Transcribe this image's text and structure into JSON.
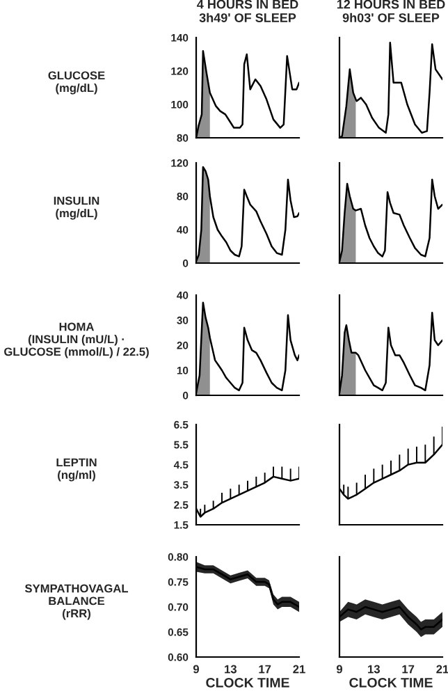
{
  "chart_data": [
    {
      "type": "line",
      "title": "4 HOURS IN BED\n3h49' OF SLEEP",
      "ylabel": "GLUCOSE\n(mg/dL)",
      "xlim": [
        9,
        21
      ],
      "xticks": [
        9,
        13,
        17,
        21
      ],
      "ylim": [
        80,
        140
      ],
      "yticks": [
        80,
        100,
        120,
        140
      ],
      "tick_labels": "y",
      "series": [
        {
          "type": "area",
          "color": "#909090",
          "x": [
            9.0,
            9.27,
            9.65,
            9.8,
            10.2,
            10.6
          ],
          "values": [
            80,
            87,
            94,
            132,
            119,
            107
          ]
        },
        {
          "color": "#000000",
          "x": [
            9.0,
            9.27,
            9.65,
            9.8,
            10.2,
            10.6,
            11.3,
            11.8,
            12.4,
            12.9,
            13.4,
            14.1,
            14.4,
            14.6,
            14.9,
            15.3,
            15.9,
            16.5,
            17.2,
            18.0,
            18.8,
            19.2,
            19.6,
            20.2,
            20.7,
            21.0
          ],
          "values": [
            80,
            87,
            94,
            132,
            119,
            107,
            99,
            96,
            94,
            90,
            86,
            86,
            88,
            124,
            130,
            109,
            115,
            111,
            103,
            91,
            86,
            88,
            129,
            109,
            109,
            113
          ]
        }
      ]
    },
    {
      "type": "line",
      "title": "12 HOURS IN BED\n9h03' OF SLEEP",
      "xlim": [
        9,
        21
      ],
      "xticks": [
        9,
        13,
        17,
        21
      ],
      "ylim": [
        80,
        140
      ],
      "yticks": [
        80,
        100,
        120,
        140
      ],
      "tick_labels": false,
      "series": [
        {
          "type": "area",
          "color": "#909090",
          "x": [
            9.0,
            9.3,
            9.8,
            10.2,
            10.6,
            10.9
          ],
          "values": [
            80,
            81,
            99,
            121,
            107,
            103
          ]
        },
        {
          "color": "#000000",
          "x": [
            9.0,
            9.3,
            9.8,
            10.2,
            10.6,
            10.9,
            11.0,
            11.5,
            12.1,
            12.8,
            13.6,
            14.4,
            14.7,
            14.9,
            15.3,
            16.2,
            16.9,
            17.8,
            18.6,
            19.2,
            19.5,
            19.8,
            20.2,
            21.0
          ],
          "values": [
            80,
            81,
            99,
            121,
            107,
            103,
            102,
            104,
            100,
            92,
            86,
            83,
            94,
            137,
            113,
            113,
            100,
            88,
            83,
            84,
            107,
            136,
            121,
            115
          ]
        }
      ]
    },
    {
      "type": "line",
      "ylabel": "INSULIN\n(mg/dL)",
      "xlim": [
        9,
        21
      ],
      "xticks": [
        9,
        13,
        17,
        21
      ],
      "ylim": [
        0,
        120
      ],
      "yticks": [
        0,
        40,
        80,
        120
      ],
      "tick_labels": "y",
      "series": [
        {
          "type": "area",
          "color": "#909090",
          "x": [
            9.0,
            9.3,
            9.6,
            9.8,
            10.1,
            10.4,
            10.6
          ],
          "values": [
            2,
            10,
            40,
            115,
            110,
            100,
            80
          ]
        },
        {
          "color": "#000000",
          "x": [
            9.0,
            9.3,
            9.6,
            9.8,
            10.1,
            10.4,
            10.6,
            11.0,
            11.5,
            12.0,
            12.5,
            13.0,
            13.5,
            14.0,
            14.3,
            14.6,
            14.9,
            15.3,
            16.0,
            16.5,
            17.2,
            17.8,
            18.4,
            19.0,
            19.4,
            19.7,
            20.0,
            20.4,
            20.8,
            21.0
          ],
          "values": [
            2,
            10,
            40,
            115,
            110,
            100,
            80,
            55,
            40,
            32,
            25,
            15,
            10,
            8,
            20,
            88,
            80,
            70,
            62,
            50,
            35,
            20,
            12,
            10,
            40,
            100,
            75,
            55,
            56,
            60
          ]
        }
      ]
    },
    {
      "type": "line",
      "xlim": [
        9,
        21
      ],
      "xticks": [
        9,
        13,
        17,
        21
      ],
      "ylim": [
        0,
        120
      ],
      "yticks": [
        0,
        40,
        80,
        120
      ],
      "tick_labels": false,
      "series": [
        {
          "type": "area",
          "color": "#909090",
          "x": [
            9.0,
            9.3,
            9.6,
            9.9,
            10.2,
            10.6,
            10.9
          ],
          "values": [
            2,
            15,
            60,
            95,
            80,
            65,
            63
          ]
        },
        {
          "color": "#000000",
          "x": [
            9.0,
            9.3,
            9.6,
            9.9,
            10.2,
            10.6,
            10.9,
            11.5,
            12.0,
            12.5,
            13.0,
            13.5,
            14.0,
            14.3,
            14.6,
            14.9,
            15.3,
            16.0,
            16.5,
            17.2,
            17.8,
            18.5,
            19.0,
            19.5,
            19.8,
            20.1,
            20.5,
            21.0
          ],
          "values": [
            2,
            15,
            60,
            95,
            80,
            65,
            63,
            65,
            45,
            30,
            20,
            12,
            8,
            15,
            85,
            72,
            60,
            58,
            45,
            30,
            18,
            10,
            8,
            30,
            100,
            80,
            65,
            70
          ]
        }
      ]
    },
    {
      "type": "line",
      "ylabel": "HOMA\n(INSULIN (mU/L) ·\nGLUCOSE (mmol/L) / 22.5)",
      "xlim": [
        9,
        21
      ],
      "xticks": [
        9,
        13,
        17,
        21
      ],
      "ylim": [
        0,
        40
      ],
      "yticks": [
        0,
        10,
        20,
        30,
        40
      ],
      "tick_labels": "y",
      "series": [
        {
          "type": "area",
          "color": "#909090",
          "x": [
            9.0,
            9.4,
            9.7,
            9.8,
            10.1,
            10.4,
            10.6
          ],
          "values": [
            1,
            8,
            30,
            37,
            31,
            27,
            23
          ]
        },
        {
          "color": "#000000",
          "x": [
            9.0,
            9.4,
            9.7,
            9.8,
            10.1,
            10.4,
            10.6,
            10.8,
            11.2,
            11.6,
            12.0,
            12.5,
            13.0,
            13.5,
            14.0,
            14.4,
            14.6,
            15.0,
            15.5,
            16.0,
            16.5,
            17.2,
            17.8,
            18.4,
            19.0,
            19.4,
            19.7,
            20.0,
            20.5,
            20.8,
            21.0
          ],
          "values": [
            1,
            8,
            30,
            37,
            31,
            27,
            23,
            20,
            14,
            12,
            10,
            7,
            5,
            3,
            2,
            5,
            27,
            22,
            18,
            17,
            14,
            9,
            5,
            3,
            2,
            10,
            32,
            22,
            16,
            14,
            16
          ]
        }
      ]
    },
    {
      "type": "line",
      "xlim": [
        9,
        21
      ],
      "xticks": [
        9,
        13,
        17,
        21
      ],
      "ylim": [
        0,
        40
      ],
      "yticks": [
        0,
        10,
        20,
        30,
        40
      ],
      "tick_labels": false,
      "series": [
        {
          "type": "area",
          "color": "#909090",
          "x": [
            9.0,
            9.3,
            9.6,
            9.8,
            10.1,
            10.4,
            10.8,
            10.9
          ],
          "values": [
            1,
            8,
            25,
            28,
            22,
            17,
            17,
            17
          ]
        },
        {
          "color": "#000000",
          "x": [
            9.0,
            9.3,
            9.6,
            9.8,
            10.1,
            10.4,
            10.8,
            10.9,
            11.2,
            11.6,
            12.0,
            12.5,
            13.0,
            13.5,
            14.0,
            14.4,
            14.7,
            15.0,
            15.5,
            16.0,
            16.5,
            17.2,
            17.8,
            18.5,
            19.0,
            19.5,
            19.8,
            20.1,
            20.5,
            21.0
          ],
          "values": [
            1,
            8,
            25,
            28,
            22,
            17,
            17,
            17,
            16,
            13,
            10,
            7,
            4,
            3,
            2,
            5,
            27,
            20,
            16,
            16,
            13,
            8,
            4,
            3,
            2,
            12,
            33,
            22,
            20,
            22
          ]
        }
      ]
    },
    {
      "type": "line",
      "ylabel": "LEPTIN\n(ng/ml)",
      "xlim": [
        9,
        21
      ],
      "xticks": [
        9,
        13,
        17,
        21
      ],
      "ylim": [
        1.5,
        6.5
      ],
      "yticks": [
        1.5,
        2.5,
        3.5,
        4.5,
        5.5,
        6.5
      ],
      "tick_labels": "y",
      "series": [
        {
          "color": "#000000",
          "x": [
            9.0,
            9.5,
            10,
            11,
            12,
            13,
            14,
            15,
            16,
            17,
            18,
            19,
            20,
            21
          ],
          "values": [
            2.3,
            1.9,
            2.1,
            2.3,
            2.6,
            2.8,
            3.0,
            3.2,
            3.4,
            3.6,
            3.9,
            3.8,
            3.7,
            3.8
          ],
          "errors": [
            [
              2.3,
              2.7
            ],
            [
              1.9,
              2.3
            ],
            [
              2.1,
              2.5
            ],
            [
              2.3,
              2.7
            ],
            [
              2.6,
              3.1
            ],
            [
              2.8,
              3.3
            ],
            [
              3.0,
              3.5
            ],
            [
              3.2,
              3.7
            ],
            [
              3.4,
              3.9
            ],
            [
              3.6,
              4.1
            ],
            [
              3.9,
              4.4
            ],
            [
              3.8,
              4.4
            ],
            [
              3.7,
              4.3
            ],
            [
              3.8,
              4.4
            ]
          ]
        }
      ]
    },
    {
      "type": "line",
      "xlim": [
        9,
        21
      ],
      "xticks": [
        9,
        13,
        17,
        21
      ],
      "ylim": [
        1.5,
        6.5
      ],
      "yticks": [
        1.5,
        2.5,
        3.5,
        4.5,
        5.5,
        6.5
      ],
      "tick_labels": false,
      "series": [
        {
          "color": "#000000",
          "x": [
            9.0,
            9.5,
            10,
            11,
            12,
            13,
            14,
            15,
            16,
            17,
            18,
            19,
            20,
            21
          ],
          "values": [
            3.3,
            3.0,
            2.8,
            3.0,
            3.3,
            3.6,
            3.8,
            4.0,
            4.2,
            4.5,
            4.6,
            4.6,
            5.0,
            5.5
          ],
          "errors": [
            [
              3.3,
              3.8
            ],
            [
              3.0,
              3.5
            ],
            [
              2.8,
              3.4
            ],
            [
              3.0,
              3.6
            ],
            [
              3.3,
              4.0
            ],
            [
              3.6,
              4.3
            ],
            [
              3.8,
              4.5
            ],
            [
              4.0,
              4.7
            ],
            [
              4.2,
              5.0
            ],
            [
              4.5,
              5.3
            ],
            [
              4.6,
              5.4
            ],
            [
              4.6,
              5.5
            ],
            [
              5.0,
              5.9
            ],
            [
              5.5,
              6.4
            ]
          ]
        }
      ]
    },
    {
      "type": "line",
      "ylabel": "SYMPATHOVAGAL\nBALANCE\n(rRR)",
      "xlabel": "CLOCK TIME",
      "xlim": [
        9,
        21
      ],
      "xticks": [
        9,
        13,
        17,
        21
      ],
      "ylim": [
        0.6,
        0.8
      ],
      "yticks": [
        {
          "value": 0.6,
          "label": "0.60"
        },
        {
          "value": 0.65,
          "label": "0.65"
        },
        {
          "value": 0.7,
          "label": "0.70"
        },
        {
          "value": 0.75,
          "label": "0.75"
        },
        {
          "value": 0.8,
          "label": "0.80"
        }
      ],
      "series": [
        {
          "color": "#000000",
          "x": [
            9,
            10,
            11,
            12,
            13,
            14,
            15,
            16,
            17,
            17.5,
            18,
            18.5,
            19,
            20,
            21
          ],
          "values": [
            0.78,
            0.775,
            0.775,
            0.765,
            0.755,
            0.76,
            0.765,
            0.75,
            0.75,
            0.745,
            0.715,
            0.705,
            0.71,
            0.71,
            0.7
          ],
          "lower": [
            0.77,
            0.767,
            0.767,
            0.757,
            0.747,
            0.752,
            0.757,
            0.742,
            0.742,
            0.737,
            0.705,
            0.695,
            0.7,
            0.7,
            0.69
          ],
          "upper": [
            0.79,
            0.783,
            0.783,
            0.773,
            0.763,
            0.768,
            0.773,
            0.758,
            0.758,
            0.753,
            0.725,
            0.715,
            0.72,
            0.72,
            0.71
          ]
        }
      ]
    },
    {
      "type": "line",
      "xlabel": "CLOCK TIME",
      "xlim": [
        9,
        21
      ],
      "xticks": [
        9,
        13,
        17,
        21
      ],
      "ylim": [
        0.6,
        0.8
      ],
      "yticks": [
        0.6,
        0.65,
        0.7,
        0.75,
        0.8
      ],
      "tick_labels": "x",
      "series": [
        {
          "color": "#000000",
          "x": [
            9,
            10,
            11,
            12,
            13,
            14,
            15,
            16,
            17,
            18,
            18.5,
            19,
            20,
            21
          ],
          "values": [
            0.68,
            0.695,
            0.69,
            0.7,
            0.695,
            0.69,
            0.695,
            0.7,
            0.68,
            0.665,
            0.655,
            0.66,
            0.66,
            0.675
          ],
          "lower": [
            0.67,
            0.68,
            0.675,
            0.685,
            0.68,
            0.675,
            0.68,
            0.685,
            0.665,
            0.65,
            0.64,
            0.645,
            0.645,
            0.66
          ],
          "upper": [
            0.69,
            0.71,
            0.705,
            0.715,
            0.71,
            0.705,
            0.71,
            0.715,
            0.695,
            0.68,
            0.67,
            0.675,
            0.675,
            0.69
          ]
        }
      ]
    }
  ]
}
